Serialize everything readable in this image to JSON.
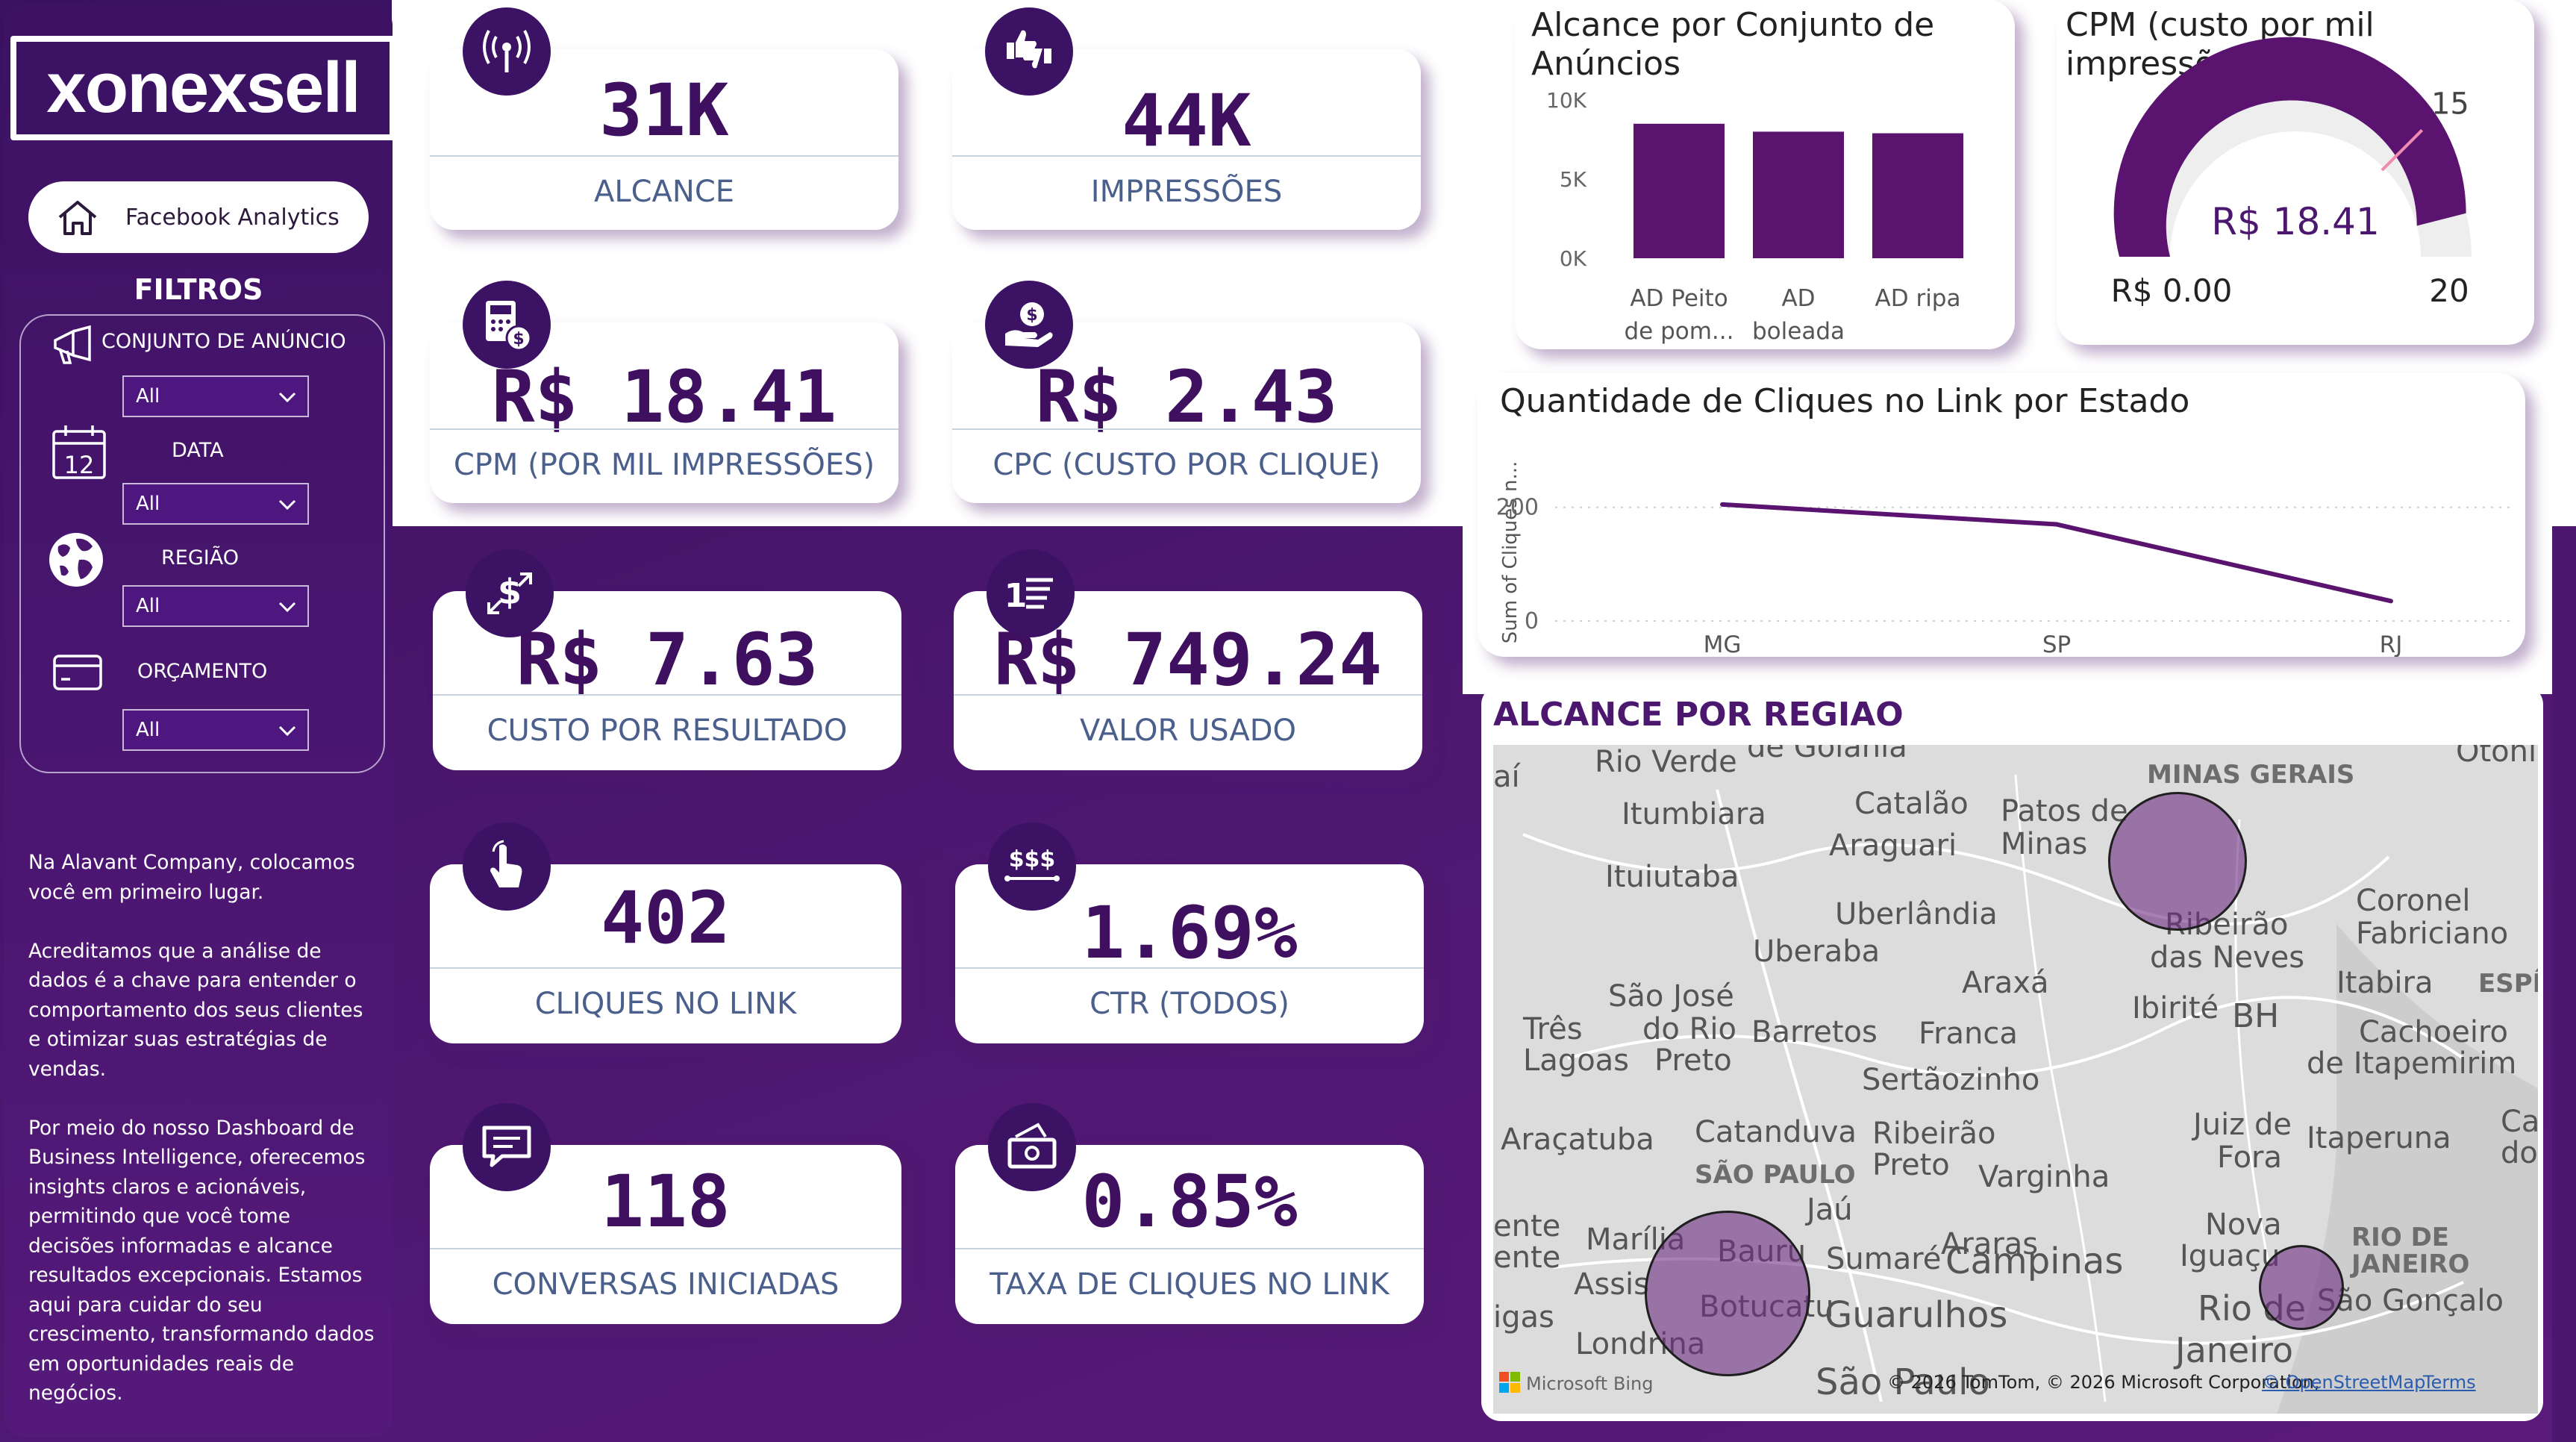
{
  "app": {
    "brand": "xonexsell",
    "nav_label": "Facebook Analytics"
  },
  "filters": {
    "title": "FILTROS",
    "items": [
      {
        "label": "CONJUNTO DE ANÚNCIO",
        "value": "All",
        "icon": "megaphone-icon"
      },
      {
        "label": "DATA",
        "value": "All",
        "icon": "calendar-icon",
        "icon_text": "12"
      },
      {
        "label": "REGIÃO",
        "value": "All",
        "icon": "globe-icon"
      },
      {
        "label": "ORÇAMENTO",
        "value": "All",
        "icon": "credit-card-icon"
      }
    ]
  },
  "about": {
    "p1": "Na Alavant Company, colocamos você em primeiro lugar.",
    "p2": "Acreditamos que a análise de dados é a chave para entender o comportamento dos seus clientes e otimizar suas estratégias de vendas.",
    "p3": "Por meio do nosso Dashboard de Business Intelligence, oferecemos insights claros e acionáveis, permitindo que você tome decisões informadas e alcance resultados excepcionais. Estamos aqui para cuidar do seu crescimento, transformando dados em oportunidades reais de negócios."
  },
  "kpis": [
    {
      "value": "31K",
      "label": "ALCANCE",
      "icon": "broadcast-icon"
    },
    {
      "value": "44K",
      "label": "IMPRESSÕES",
      "icon": "thumbs-icon"
    },
    {
      "value": "R$ 18.41",
      "label": "CPM (POR MIL IMPRESSÕES)",
      "icon": "calculator-icon"
    },
    {
      "value": "R$ 2.43",
      "label": "CPC (CUSTO POR CLIQUE)",
      "icon": "money-hand-icon"
    },
    {
      "value": "R$ 7.63",
      "label": "CUSTO POR RESULTADO",
      "icon": "dollar-exchange-icon"
    },
    {
      "value": "R$ 749.24",
      "label": "VALOR USADO",
      "icon": "list-icon",
      "icon_text": "1"
    },
    {
      "value": "402",
      "label": "CLIQUES NO LINK",
      "icon": "pointer-click-icon"
    },
    {
      "value": "1.69%",
      "label": "CTR (TODOS)",
      "icon": "dollar-signs-icon",
      "icon_text": "$$$"
    },
    {
      "value": "118",
      "label": "CONVERSAS INICIADAS",
      "icon": "chat-icon"
    },
    {
      "value": "0.85%",
      "label": "TAXA DE CLIQUES NO LINK",
      "icon": "cash-icon"
    }
  ],
  "chart_data": [
    {
      "type": "bar",
      "title": "Alcance por Conjunto de Anúncios",
      "categories": [
        "AD Peito de pom...",
        "AD boleada",
        "AD ripa"
      ],
      "category_lines": [
        [
          "AD Peito",
          "de pom..."
        ],
        [
          "AD",
          "boleada"
        ],
        [
          "AD ripa"
        ]
      ],
      "values": [
        8500,
        8000,
        7900
      ],
      "yticks": [
        "10K",
        "5K",
        "0K"
      ],
      "ylim": [
        0,
        10000
      ],
      "color": "#5a1470"
    },
    {
      "type": "gauge",
      "title": "CPM (custo por mil impressões)",
      "value": 18.41,
      "value_label": "R$ 18.41",
      "min": 0,
      "min_label": "R$ 0.00",
      "max": 20,
      "max_label": "20",
      "target": 15,
      "target_label": "15",
      "color": "#5a1470"
    },
    {
      "type": "line",
      "title": "Quantidade de Cliques no Link por Estado",
      "ylabel": "Sum of Cliques n...",
      "x": [
        "MG",
        "SP",
        "RJ"
      ],
      "values": [
        205,
        170,
        35
      ],
      "yticks": [
        "200",
        "0"
      ],
      "ylim": [
        0,
        260
      ],
      "color": "#5a1470"
    }
  ],
  "map": {
    "title": "ALCANCE POR REGIAO",
    "cities": [
      "Rio Verde",
      "de Goiania",
      "Itumbiara",
      "Catalão",
      "Araguari",
      "Patos de",
      "Minas",
      "Ituiutaba",
      "Uberlândia",
      "Uberaba",
      "Araxá",
      "Ribeirão",
      "das Neves",
      "Ibirité",
      "BH",
      "Itabira",
      "Coronel",
      "Fabriciano",
      "São José",
      "do Rio",
      "Preto",
      "Três",
      "Lagoas",
      "Barretos",
      "Franca",
      "Sertãozinho",
      "Cachoeiro",
      "de Itapemirim",
      "Araçatuba",
      "Catanduva",
      "Ribeirão",
      "Preto",
      "Varginha",
      "Juiz de",
      "Fora",
      "Itaperuna",
      "Jaú",
      "Araras",
      "Nova",
      "Iguaçu",
      "Marília",
      "Bauru",
      "Sumaré",
      "Campinas",
      "Assis",
      "Botucatu",
      "Guarulhos",
      "Rio de",
      "Janeiro",
      "São Gonçalo",
      "Londrina",
      "São Paulo",
      "Otoni",
      "aí",
      "Cam",
      "dos",
      "ente",
      "ente",
      "igas"
    ],
    "states": [
      "MINAS GERAIS",
      "SÃO PAULO",
      "RIO DE",
      "JANEIRO",
      "ESPÍR"
    ],
    "bubbles": [
      {
        "region": "MG",
        "reach": 15000
      },
      {
        "region": "SP",
        "reach": 17000
      },
      {
        "region": "RJ",
        "reach": 5000
      }
    ],
    "bing": "Microsoft Bing",
    "copyright": "© 2026 TomTom, © 2026 Microsoft Corporation,",
    "osm": "© OpenStreetMap",
    "terms": "Terms"
  }
}
